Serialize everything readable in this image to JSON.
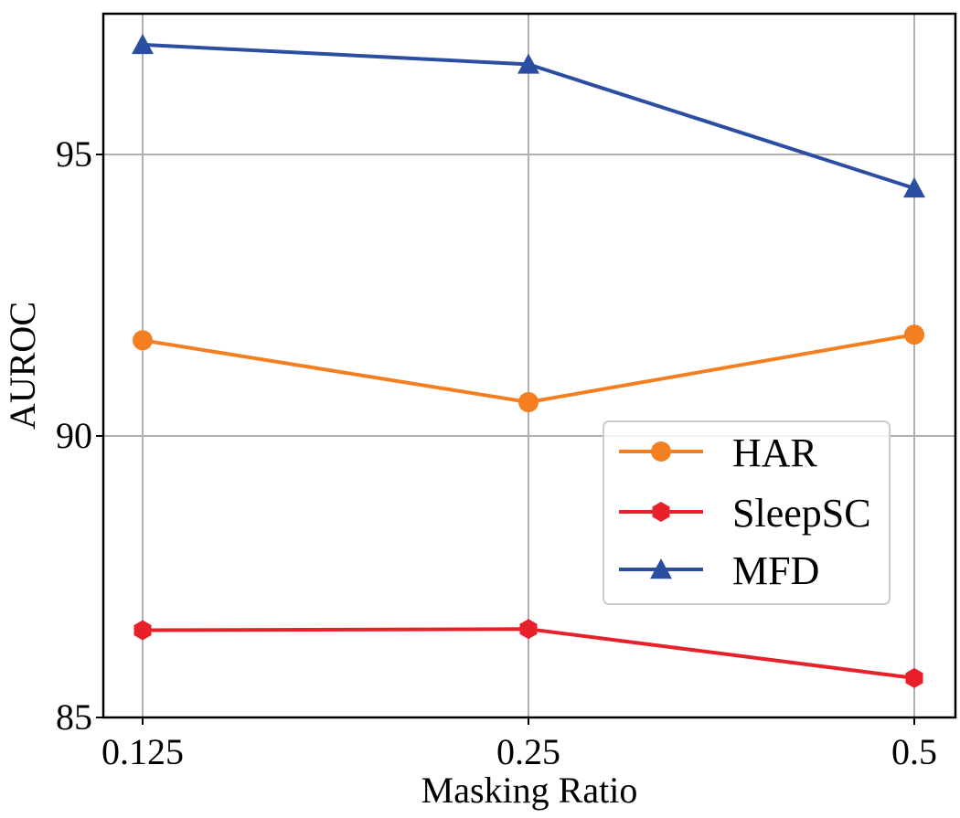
{
  "chart_data": {
    "type": "line",
    "x": [
      "0.125",
      "0.25",
      "0.5"
    ],
    "xlabel": "Masking Ratio",
    "ylabel": "AUROC",
    "ylim": [
      85,
      97.5
    ],
    "yticks": [
      "85",
      "90",
      "95"
    ],
    "grid": true,
    "legend_position": "center-right",
    "series": [
      {
        "name": "HAR",
        "color": "#f47f20",
        "marker": "circle",
        "values": [
          91.7,
          90.6,
          91.8
        ]
      },
      {
        "name": "SleepSC",
        "color": "#e8202a",
        "marker": "hexagon",
        "values": [
          86.55,
          86.57,
          85.7
        ]
      },
      {
        "name": "MFD",
        "color": "#2b4ea2",
        "marker": "triangle",
        "values": [
          96.95,
          96.6,
          94.4
        ]
      }
    ]
  }
}
